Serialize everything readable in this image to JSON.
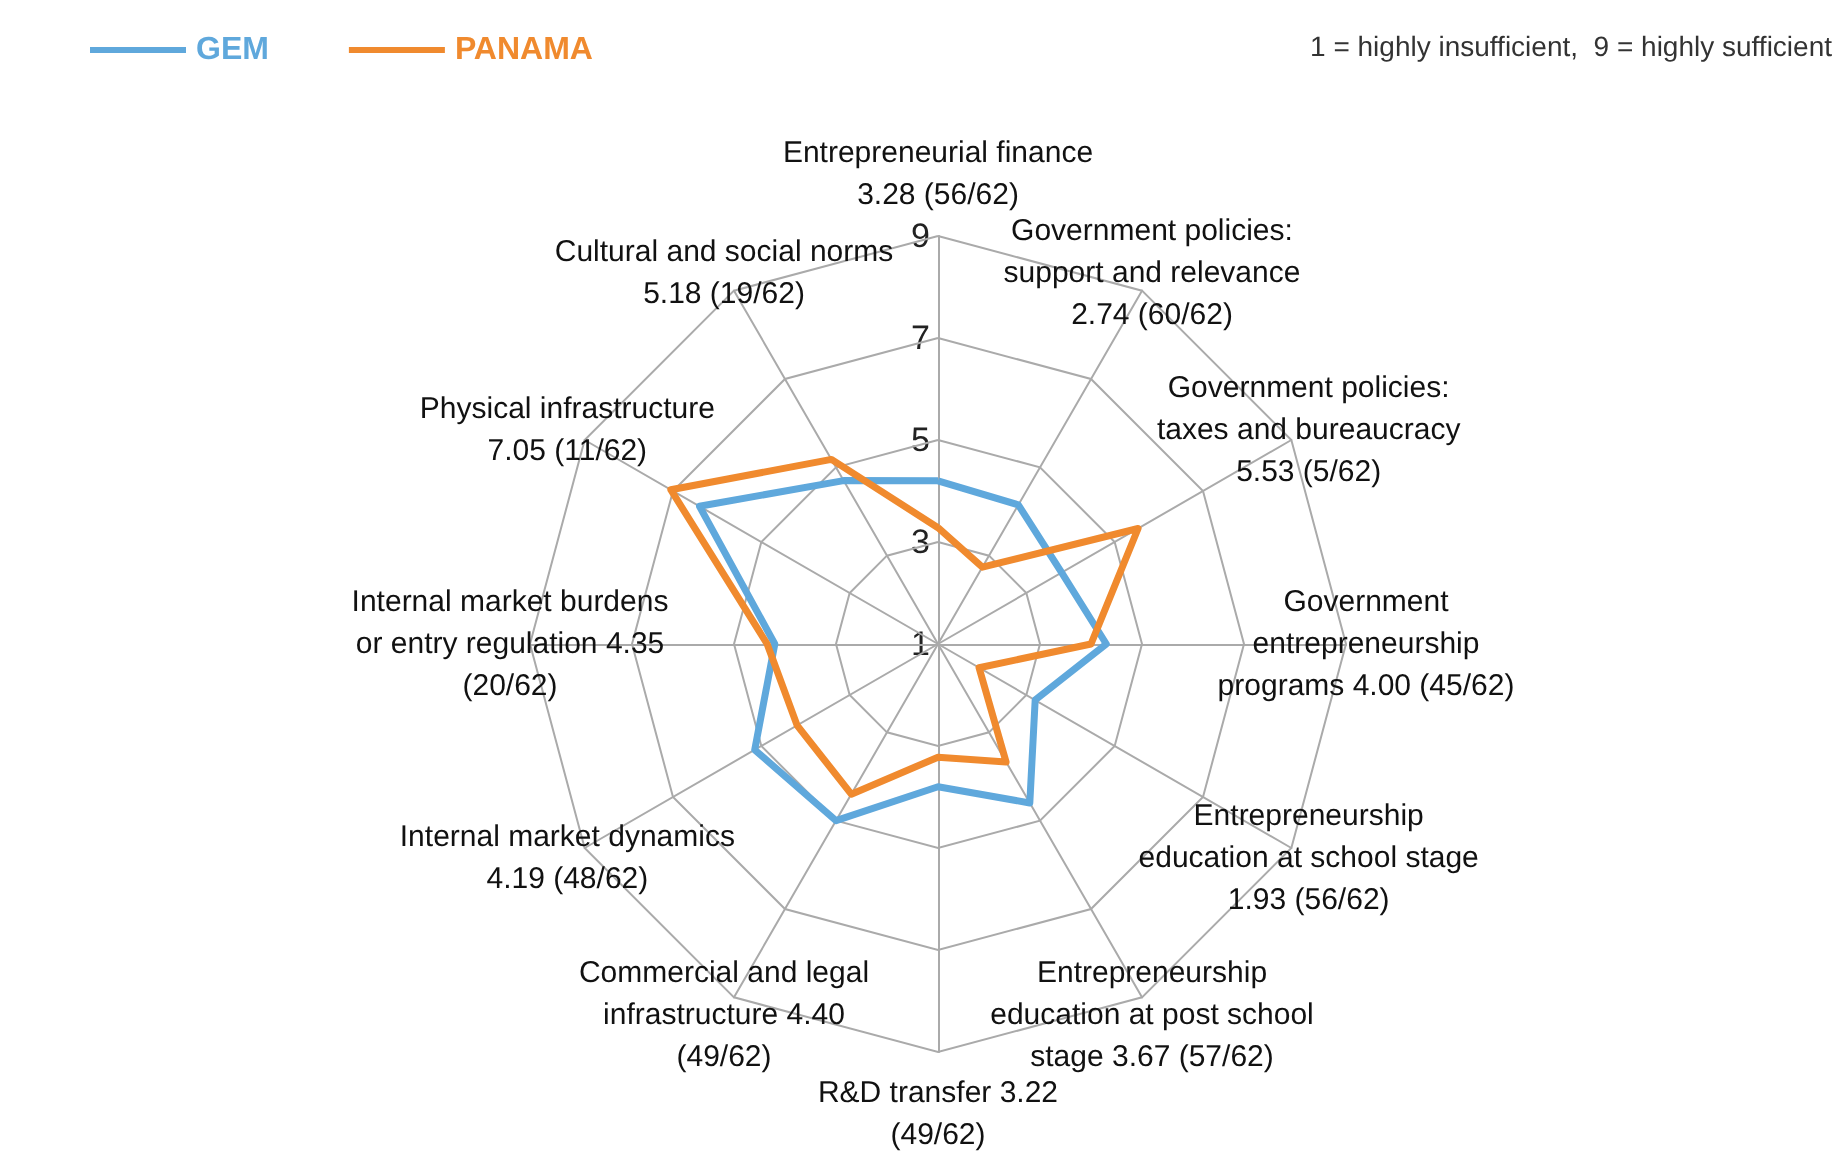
{
  "chart_data": {
    "type": "radar",
    "categories": [
      "Entrepreneurial finance\n3.28 (56/62)",
      "Government policies:\nsupport and relevance\n2.74 (60/62)",
      "Government policies:\ntaxes and bureaucracy\n5.53 (5/62)",
      "Government\nentrepreneurship\nprograms 4.00 (45/62)",
      "Entrepreneurship\neducation at school stage\n1.93 (56/62)",
      "Entrepreneurship\neducation at post school\nstage 3.67 (57/62)",
      "R&D transfer 3.22\n(49/62)",
      "Commercial and legal\ninfrastructure 4.40\n(49/62)",
      "Internal market dynamics\n4.19 (48/62)",
      "Internal market burdens\nor entry regulation 4.35\n(20/62)",
      "Physical infrastructure\n7.05 (11/62)",
      "Cultural and social norms\n5.18 (19/62)"
    ],
    "series": [
      {
        "name": "GEM",
        "color": "#5fa8dc",
        "values": [
          4.2,
          4.15,
          3.8,
          4.3,
          3.2,
          4.6,
          3.8,
          5.0,
          5.15,
          4.2,
          6.4,
          4.7
        ]
      },
      {
        "name": "PANAMA",
        "color": "#f08a2e",
        "values": [
          3.28,
          2.74,
          5.53,
          4.0,
          1.93,
          3.67,
          3.22,
          4.4,
          4.19,
          4.35,
          7.05,
          5.18
        ]
      }
    ],
    "ylim": [
      1,
      9
    ],
    "yticks": [
      1,
      3,
      5,
      7,
      9
    ],
    "grid": true,
    "legend": "top left",
    "marker": "none",
    "line_style": "solid",
    "annotations": [
      "1 = highly insufficient,  9 = highly sufficient"
    ]
  }
}
